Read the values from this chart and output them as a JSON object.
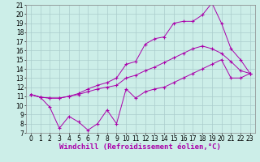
{
  "xlabel": "Windchill (Refroidissement éolien,°C)",
  "bg_color": "#cceee8",
  "line_color": "#aa00aa",
  "grid_color": "#aacccc",
  "spine_color": "#888888",
  "xlim": [
    -0.5,
    23.5
  ],
  "ylim": [
    7,
    21
  ],
  "xticks": [
    0,
    1,
    2,
    3,
    4,
    5,
    6,
    7,
    8,
    9,
    10,
    11,
    12,
    13,
    14,
    15,
    16,
    17,
    18,
    19,
    20,
    21,
    22,
    23
  ],
  "yticks": [
    7,
    8,
    9,
    10,
    11,
    12,
    13,
    14,
    15,
    16,
    17,
    18,
    19,
    20,
    21
  ],
  "line_max": {
    "x": [
      0,
      1,
      2,
      3,
      4,
      5,
      6,
      7,
      8,
      9,
      10,
      11,
      12,
      13,
      14,
      15,
      16,
      17,
      18,
      19,
      20,
      21,
      22,
      23
    ],
    "y": [
      11.2,
      10.9,
      10.8,
      10.8,
      11.0,
      11.3,
      11.8,
      12.2,
      12.5,
      13.0,
      14.5,
      14.8,
      16.7,
      17.3,
      17.5,
      19.0,
      19.2,
      19.2,
      19.9,
      21.2,
      19.0,
      16.2,
      15.0,
      13.5
    ]
  },
  "line_mean": {
    "x": [
      0,
      1,
      2,
      3,
      4,
      5,
      6,
      7,
      8,
      9,
      10,
      11,
      12,
      13,
      14,
      15,
      16,
      17,
      18,
      19,
      20,
      21,
      22,
      23
    ],
    "y": [
      11.2,
      10.9,
      10.8,
      10.8,
      11.0,
      11.2,
      11.5,
      11.8,
      12.0,
      12.2,
      13.0,
      13.3,
      13.8,
      14.2,
      14.7,
      15.2,
      15.7,
      16.2,
      16.5,
      16.2,
      15.7,
      14.8,
      13.8,
      13.5
    ]
  },
  "line_min": {
    "x": [
      0,
      1,
      2,
      3,
      4,
      5,
      6,
      7,
      8,
      9,
      10,
      11,
      12,
      13,
      14,
      15,
      16,
      17,
      18,
      19,
      20,
      21,
      22,
      23
    ],
    "y": [
      11.2,
      10.9,
      9.8,
      7.5,
      8.8,
      8.2,
      7.3,
      8.0,
      9.5,
      8.0,
      11.8,
      10.8,
      11.5,
      11.8,
      12.0,
      12.5,
      13.0,
      13.5,
      14.0,
      14.5,
      15.0,
      13.0,
      13.0,
      13.5
    ]
  },
  "tick_fontsize": 5.5,
  "xlabel_fontsize": 6.5
}
